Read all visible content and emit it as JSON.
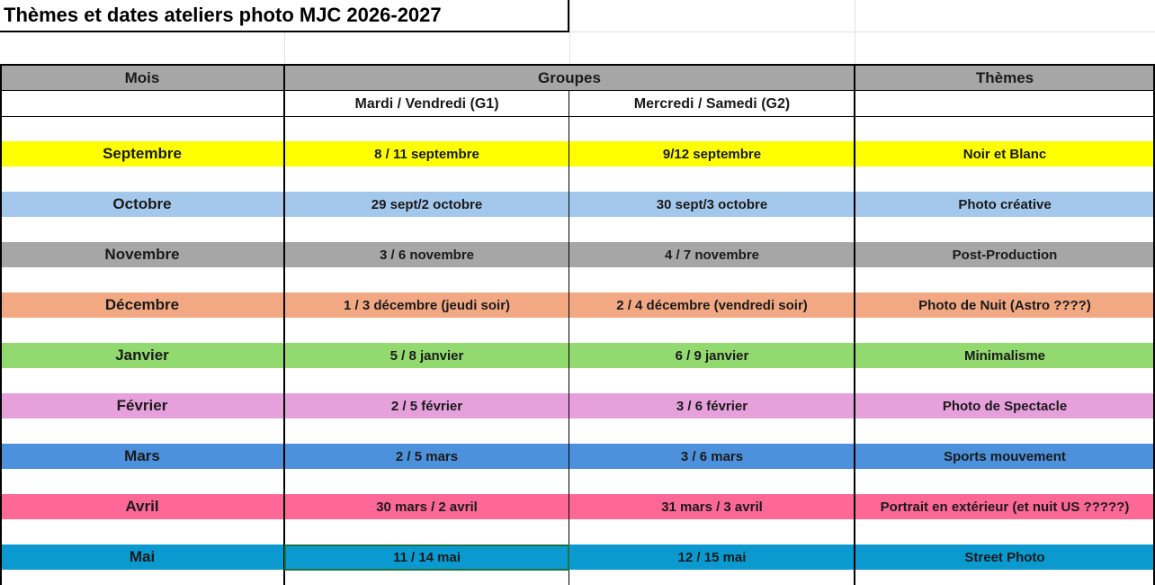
{
  "title": "Thèmes et dates ateliers photo MJC 2026-2027",
  "table": {
    "header": [
      "Mois",
      "Groupes",
      "Thèmes"
    ],
    "subheader": [
      "Mardi / Vendredi (G1)",
      "Mercredi / Samedi (G2)"
    ],
    "rows": [
      [
        "Septembre",
        "8 / 11 septembre",
        "9/12 septembre",
        "Noir et Blanc"
      ],
      [
        "Octobre",
        "29 sept/2 octobre",
        "30 sept/3 octobre",
        "Photo créative"
      ],
      [
        "Novembre",
        "3 / 6  novembre",
        "4 / 7 novembre",
        "Post-Production"
      ],
      [
        "Décembre",
        "1 / 3 décembre (jeudi soir)",
        "2 / 4 décembre (vendredi soir)",
        "Photo de Nuit (Astro ????)"
      ],
      [
        "Janvier",
        "5 / 8 janvier",
        "6 / 9 janvier",
        "Minimalisme"
      ],
      [
        "Février",
        "2 / 5 février",
        "3 / 6 février",
        "Photo de Spectacle"
      ],
      [
        "Mars",
        "2 / 5 mars",
        "3 / 6 mars",
        "Sports mouvement"
      ],
      [
        "Avril",
        "30 mars / 2 avril",
        "31 mars / 3 avril",
        "Portrait en extérieur (et nuit US ?????)"
      ],
      [
        "Mai",
        "11 / 14 mai",
        "12 / 15 mai",
        "Street Photo"
      ]
    ]
  }
}
